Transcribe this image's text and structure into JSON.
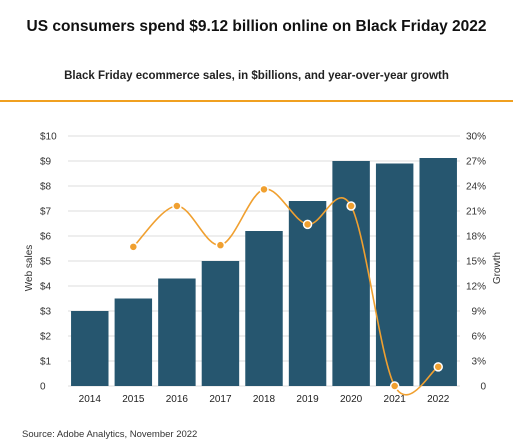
{
  "page": {
    "title": "US consumers spend $9.12 billion online on Black Friday 2022",
    "subtitle": "Black Friday ecommerce sales, in $billions, and year-over-year growth",
    "source": "Source: Adobe Analytics, November 2022"
  },
  "chart_data": {
    "type": "bar",
    "title": "US consumers spend $9.12 billion online on Black Friday 2022",
    "subtitle": "Black Friday ecommerce sales, in $billions, and year-over-year growth",
    "categories": [
      "2014",
      "2015",
      "2016",
      "2017",
      "2018",
      "2019",
      "2020",
      "2021",
      "2022"
    ],
    "series": [
      {
        "name": "Web sales",
        "type": "bar",
        "axis": "left",
        "unit": "$billions",
        "color": "#26566f",
        "values": [
          3.0,
          3.5,
          4.3,
          5.0,
          6.2,
          7.4,
          9.0,
          8.9,
          9.12
        ]
      },
      {
        "name": "Growth",
        "type": "line",
        "axis": "right",
        "unit": "%",
        "color": "#f0a030",
        "values": [
          null,
          16.7,
          21.6,
          16.9,
          23.6,
          19.4,
          21.6,
          0,
          2.3
        ]
      }
    ],
    "ylabel_left": "Web sales",
    "ylabel_right": "Growth",
    "ylim_left": [
      0,
      10
    ],
    "ylim_right": [
      0,
      30
    ],
    "yticks_left": [
      "0",
      "$1",
      "$2",
      "$3",
      "$4",
      "$5",
      "$6",
      "$7",
      "$8",
      "$9",
      "$10"
    ],
    "yticks_right": [
      "0",
      "3%",
      "6%",
      "9%",
      "12%",
      "15%",
      "18%",
      "21%",
      "24%",
      "27%",
      "30%"
    ],
    "grid": true,
    "line_smooth": true
  }
}
